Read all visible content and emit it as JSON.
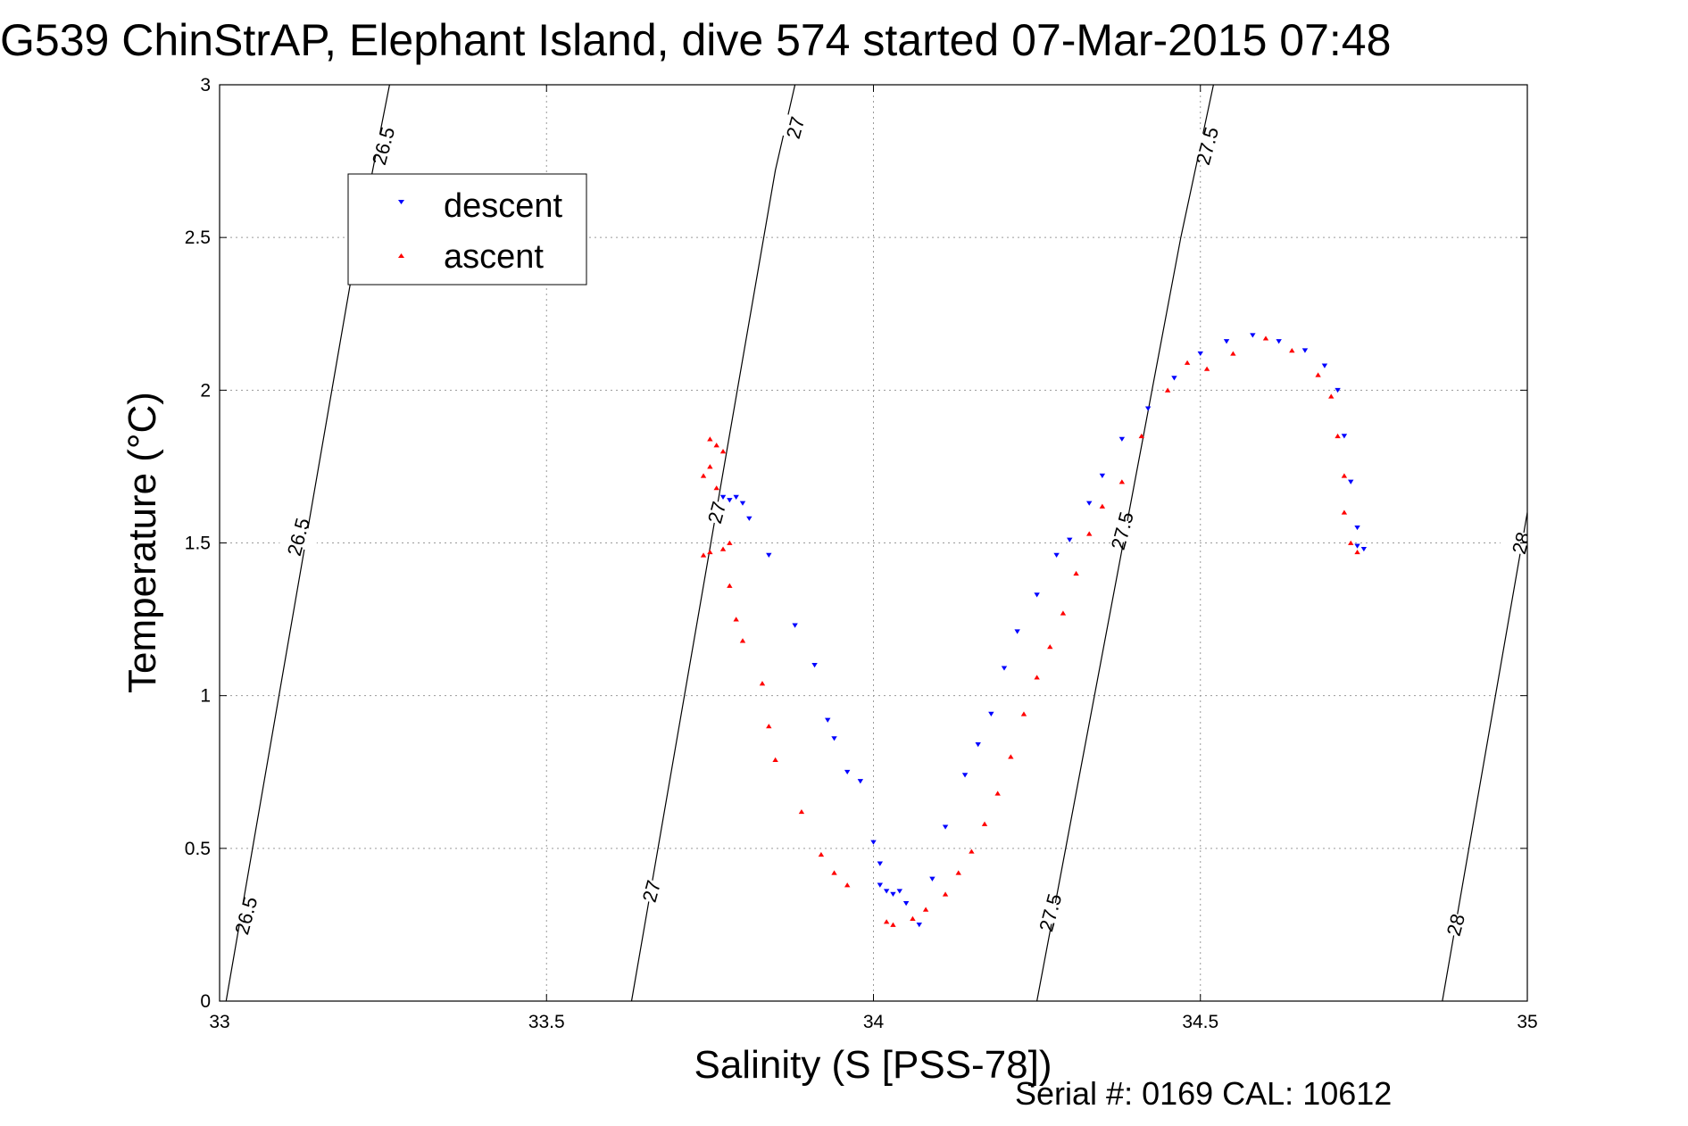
{
  "chart_data": {
    "type": "scatter",
    "title": "G539 ChinStrAP, Elephant Island, dive 574 started 07-Mar-2015 07:48",
    "xlabel": "Salinity (S [PSS-78])",
    "ylabel": "Temperature (°C)",
    "xlim": [
      33,
      35
    ],
    "ylim": [
      0,
      3
    ],
    "xticks": [
      33,
      33.5,
      34,
      34.5,
      35
    ],
    "xtick_labels": [
      "33",
      "33.5",
      "34",
      "34.5",
      "35"
    ],
    "yticks": [
      0,
      0.5,
      1,
      1.5,
      2,
      2.5,
      3
    ],
    "ytick_labels": [
      "0",
      "0.5",
      "1",
      "1.5",
      "2",
      "2.5",
      "3"
    ],
    "grid": true,
    "legend_position": "top-left",
    "annotation": "Serial #: 0169 CAL: 10612",
    "density_contours": [
      {
        "label": "26.5",
        "points": [
          [
            33.01,
            0
          ],
          [
            33.2,
            2.35
          ],
          [
            33.26,
            3.0
          ]
        ],
        "label_at": [
          [
            33.04,
            0.28
          ],
          [
            33.12,
            1.52
          ],
          [
            33.25,
            2.8
          ]
        ]
      },
      {
        "label": "27",
        "points": [
          [
            33.63,
            0
          ],
          [
            33.85,
            2.72
          ],
          [
            33.88,
            3.0
          ]
        ],
        "label_at": [
          [
            33.66,
            0.36
          ],
          [
            33.76,
            1.6
          ],
          [
            33.88,
            2.86
          ]
        ]
      },
      {
        "label": "27.5",
        "points": [
          [
            34.25,
            0
          ],
          [
            34.47,
            2.5
          ],
          [
            34.52,
            3.0
          ]
        ],
        "label_at": [
          [
            34.27,
            0.29
          ],
          [
            34.38,
            1.54
          ],
          [
            34.51,
            2.8
          ]
        ]
      },
      {
        "label": "28",
        "points": [
          [
            34.87,
            0
          ],
          [
            35.0,
            1.6
          ]
        ],
        "label_at": [
          [
            34.89,
            0.25
          ],
          [
            34.99,
            1.5
          ]
        ]
      }
    ],
    "series": [
      {
        "name": "descent",
        "color": "#0000ff",
        "marker": "triangle-down",
        "points": [
          [
            33.79,
            1.65
          ],
          [
            33.78,
            1.64
          ],
          [
            33.77,
            1.65
          ],
          [
            33.8,
            1.63
          ],
          [
            33.81,
            1.58
          ],
          [
            33.84,
            1.46
          ],
          [
            33.88,
            1.23
          ],
          [
            33.91,
            1.1
          ],
          [
            33.93,
            0.92
          ],
          [
            33.94,
            0.86
          ],
          [
            33.96,
            0.75
          ],
          [
            33.98,
            0.72
          ],
          [
            34.0,
            0.52
          ],
          [
            34.01,
            0.45
          ],
          [
            34.01,
            0.38
          ],
          [
            34.02,
            0.36
          ],
          [
            34.03,
            0.35
          ],
          [
            34.04,
            0.36
          ],
          [
            34.05,
            0.32
          ],
          [
            34.07,
            0.25
          ],
          [
            34.09,
            0.4
          ],
          [
            34.11,
            0.57
          ],
          [
            34.14,
            0.74
          ],
          [
            34.16,
            0.84
          ],
          [
            34.18,
            0.94
          ],
          [
            34.2,
            1.09
          ],
          [
            34.22,
            1.21
          ],
          [
            34.25,
            1.33
          ],
          [
            34.28,
            1.46
          ],
          [
            34.3,
            1.51
          ],
          [
            34.33,
            1.63
          ],
          [
            34.35,
            1.72
          ],
          [
            34.38,
            1.84
          ],
          [
            34.42,
            1.94
          ],
          [
            34.46,
            2.04
          ],
          [
            34.5,
            2.12
          ],
          [
            34.54,
            2.16
          ],
          [
            34.58,
            2.18
          ],
          [
            34.62,
            2.16
          ],
          [
            34.66,
            2.13
          ],
          [
            34.69,
            2.08
          ],
          [
            34.71,
            2.0
          ],
          [
            34.72,
            1.85
          ],
          [
            34.73,
            1.7
          ],
          [
            34.74,
            1.55
          ],
          [
            34.74,
            1.49
          ],
          [
            34.75,
            1.48
          ]
        ]
      },
      {
        "name": "ascent",
        "color": "#ff0000",
        "marker": "triangle-up",
        "points": [
          [
            33.75,
            1.84
          ],
          [
            33.76,
            1.82
          ],
          [
            33.77,
            1.8
          ],
          [
            33.75,
            1.75
          ],
          [
            33.74,
            1.72
          ],
          [
            33.76,
            1.68
          ],
          [
            33.74,
            1.46
          ],
          [
            33.75,
            1.47
          ],
          [
            33.77,
            1.48
          ],
          [
            33.78,
            1.5
          ],
          [
            33.78,
            1.36
          ],
          [
            33.79,
            1.25
          ],
          [
            33.8,
            1.18
          ],
          [
            33.83,
            1.04
          ],
          [
            33.84,
            0.9
          ],
          [
            33.85,
            0.79
          ],
          [
            33.89,
            0.62
          ],
          [
            33.92,
            0.48
          ],
          [
            33.94,
            0.42
          ],
          [
            33.96,
            0.38
          ],
          [
            34.02,
            0.26
          ],
          [
            34.03,
            0.25
          ],
          [
            34.06,
            0.27
          ],
          [
            34.08,
            0.3
          ],
          [
            34.11,
            0.35
          ],
          [
            34.13,
            0.42
          ],
          [
            34.15,
            0.49
          ],
          [
            34.17,
            0.58
          ],
          [
            34.19,
            0.68
          ],
          [
            34.21,
            0.8
          ],
          [
            34.23,
            0.94
          ],
          [
            34.25,
            1.06
          ],
          [
            34.27,
            1.16
          ],
          [
            34.29,
            1.27
          ],
          [
            34.31,
            1.4
          ],
          [
            34.33,
            1.53
          ],
          [
            34.35,
            1.62
          ],
          [
            34.38,
            1.7
          ],
          [
            34.41,
            1.85
          ],
          [
            34.45,
            2.0
          ],
          [
            34.48,
            2.09
          ],
          [
            34.51,
            2.07
          ],
          [
            34.55,
            2.12
          ],
          [
            34.6,
            2.17
          ],
          [
            34.64,
            2.13
          ],
          [
            34.68,
            2.05
          ],
          [
            34.7,
            1.98
          ],
          [
            34.71,
            1.85
          ],
          [
            34.72,
            1.72
          ],
          [
            34.72,
            1.6
          ],
          [
            34.73,
            1.5
          ],
          [
            34.74,
            1.47
          ]
        ]
      }
    ]
  }
}
